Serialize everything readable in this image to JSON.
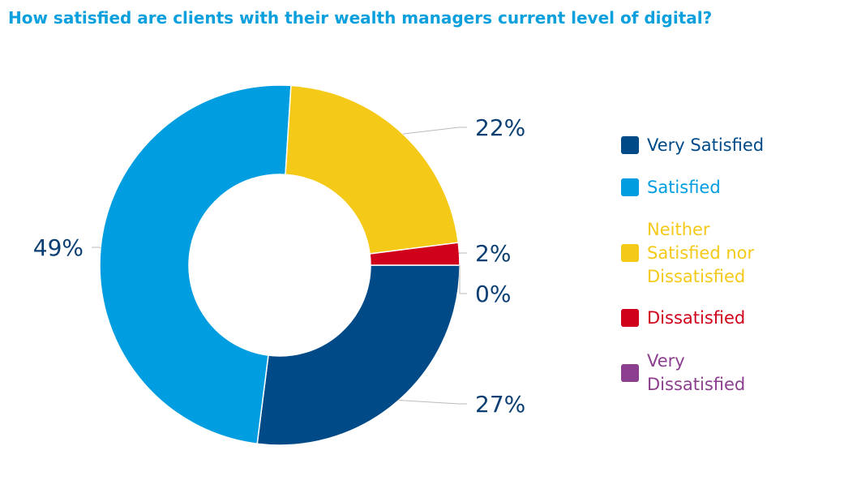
{
  "chart_data": {
    "type": "pie",
    "style": "donut",
    "title": "How satisfied are clients with their wealth managers current level of digital?",
    "categories": [
      "Very Satisfied",
      "Satisfied",
      "Neither Satisfied nor Dissatisfied",
      "Dissatisfied",
      "Very Dissatisfied"
    ],
    "values": [
      27,
      49,
      22,
      2,
      0
    ],
    "data_labels": [
      "27%",
      "49%",
      "22%",
      "2%",
      "0%"
    ],
    "colors": [
      "#004a87",
      "#009ee0",
      "#f5c918",
      "#d0021b",
      "#8b3f8e"
    ],
    "legend_placement": "right",
    "label_color": "#0b3f73"
  }
}
